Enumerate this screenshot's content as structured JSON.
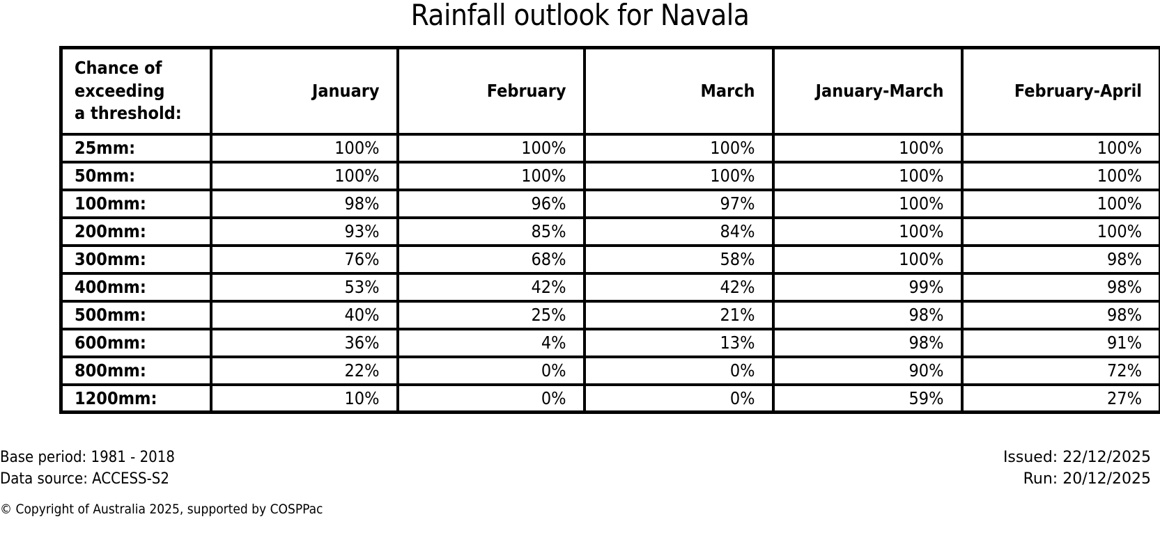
{
  "title": "Rainfall outlook for Navala",
  "table": {
    "header": {
      "threshold_label_lines": [
        "Chance of",
        "exceeding",
        "a threshold:"
      ],
      "columns": [
        "January",
        "February",
        "March",
        "January-March",
        "February-April"
      ]
    },
    "rows": [
      {
        "threshold": "25mm:",
        "values": [
          "100%",
          "100%",
          "100%",
          "100%",
          "100%"
        ]
      },
      {
        "threshold": "50mm:",
        "values": [
          "100%",
          "100%",
          "100%",
          "100%",
          "100%"
        ]
      },
      {
        "threshold": "100mm:",
        "values": [
          "98%",
          "96%",
          "97%",
          "100%",
          "100%"
        ]
      },
      {
        "threshold": "200mm:",
        "values": [
          "93%",
          "85%",
          "84%",
          "100%",
          "100%"
        ]
      },
      {
        "threshold": "300mm:",
        "values": [
          "76%",
          "68%",
          "58%",
          "100%",
          "98%"
        ]
      },
      {
        "threshold": "400mm:",
        "values": [
          "53%",
          "42%",
          "42%",
          "99%",
          "98%"
        ]
      },
      {
        "threshold": "500mm:",
        "values": [
          "40%",
          "25%",
          "21%",
          "98%",
          "98%"
        ]
      },
      {
        "threshold": "600mm:",
        "values": [
          "36%",
          "4%",
          "13%",
          "98%",
          "91%"
        ]
      },
      {
        "threshold": "800mm:",
        "values": [
          "22%",
          "0%",
          "0%",
          "90%",
          "72%"
        ]
      },
      {
        "threshold": "1200mm:",
        "values": [
          "10%",
          "0%",
          "0%",
          "59%",
          "27%"
        ]
      }
    ]
  },
  "footer": {
    "base_period": "Base period: 1981 - 2018",
    "data_source": "Data source: ACCESS-S2",
    "issued": "Issued: 22/12/2025",
    "run": "Run: 20/12/2025",
    "copyright": "© Copyright of Australia 2025, supported by COSPPac"
  },
  "colors": {
    "foreground": "#000000",
    "background": "#ffffff",
    "table_border": "#000000"
  },
  "chart_data": {
    "type": "table",
    "title": "Rainfall outlook for Navala",
    "row_label_header": "Chance of exceeding a threshold:",
    "categories": [
      "January",
      "February",
      "March",
      "January-March",
      "February-April"
    ],
    "thresholds_mm": [
      25,
      50,
      100,
      200,
      300,
      400,
      500,
      600,
      800,
      1200
    ],
    "units": "percent chance of exceeding threshold",
    "series": [
      {
        "name": "January",
        "values": [
          100,
          100,
          98,
          93,
          76,
          53,
          40,
          36,
          22,
          10
        ]
      },
      {
        "name": "February",
        "values": [
          100,
          100,
          96,
          85,
          68,
          42,
          25,
          4,
          0,
          0
        ]
      },
      {
        "name": "March",
        "values": [
          100,
          100,
          97,
          84,
          58,
          42,
          21,
          13,
          0,
          0
        ]
      },
      {
        "name": "January-March",
        "values": [
          100,
          100,
          100,
          100,
          100,
          99,
          98,
          98,
          90,
          59
        ]
      },
      {
        "name": "February-April",
        "values": [
          100,
          100,
          100,
          100,
          98,
          98,
          98,
          91,
          72,
          27
        ]
      }
    ],
    "base_period": "1981 - 2018",
    "data_source": "ACCESS-S2",
    "issued_date": "22/12/2025",
    "run_date": "20/12/2025"
  }
}
